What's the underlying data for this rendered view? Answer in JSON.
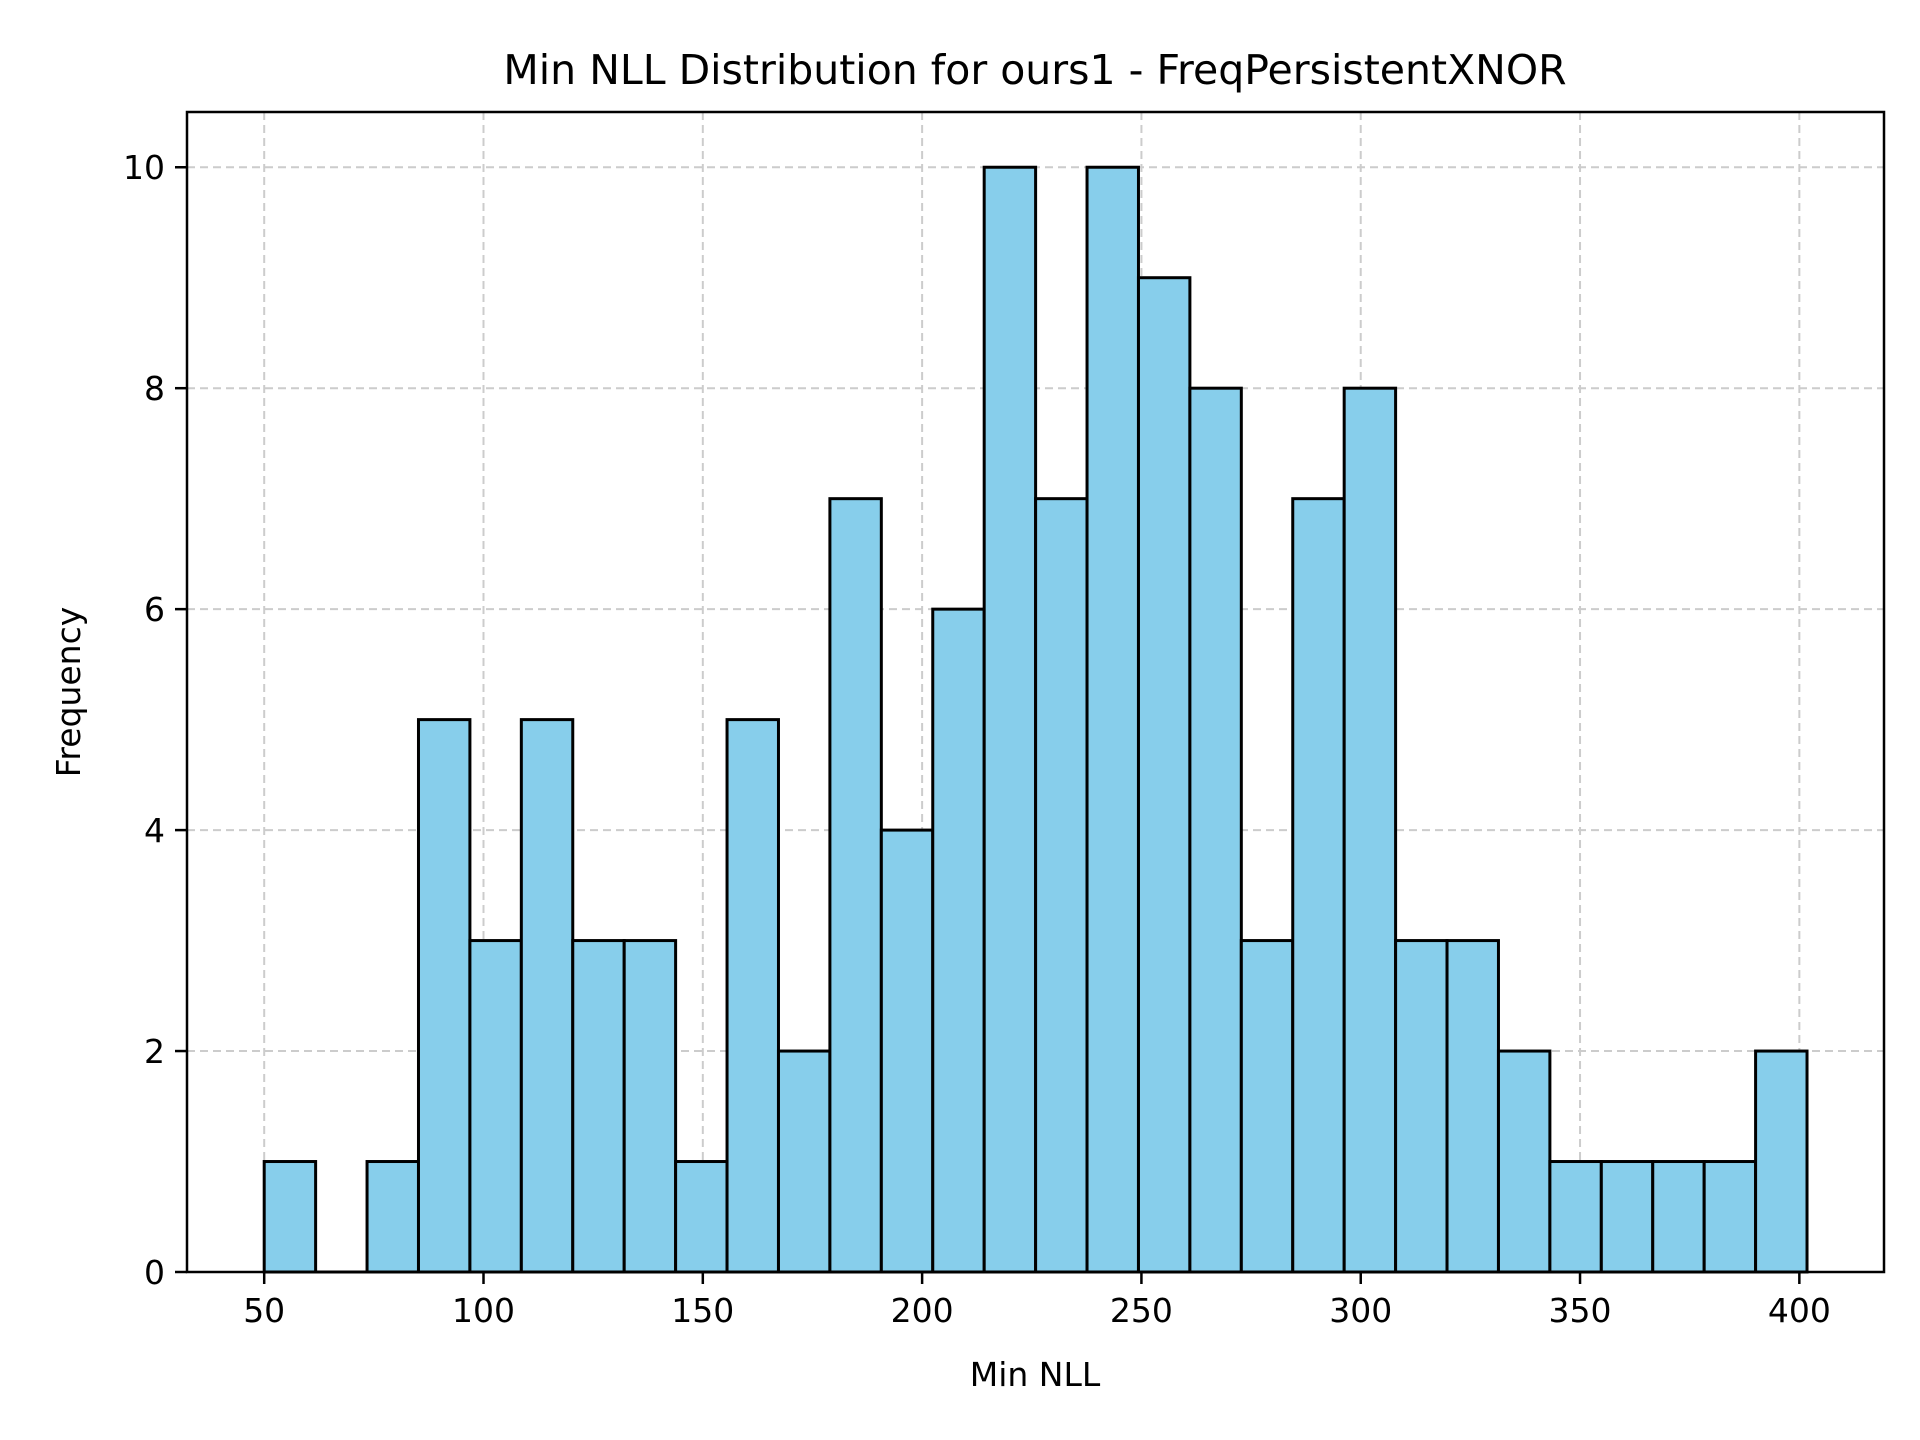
{
  "chart_data": {
    "type": "bar",
    "title": "Min NLL Distribution for ours1 - FreqPersistentXNOR",
    "xlabel": "Min NLL",
    "ylabel": "Frequency",
    "bin_start": 50.0,
    "bin_end": 401.75,
    "bin_count": 30,
    "values": [
      1,
      0,
      1,
      5,
      3,
      5,
      3,
      3,
      1,
      5,
      2,
      7,
      4,
      6,
      10,
      7,
      10,
      9,
      8,
      3,
      7,
      8,
      3,
      3,
      2,
      1,
      1,
      1,
      1,
      2
    ],
    "xlim": [
      32.4,
      419.3
    ],
    "ylim": [
      0,
      10.5
    ],
    "xticks": [
      50,
      100,
      150,
      200,
      250,
      300,
      350,
      400
    ],
    "yticks": [
      0,
      2,
      4,
      6,
      8,
      10
    ],
    "grid": true,
    "bar_color": "#87ceeb",
    "edge_color": "#000000"
  }
}
